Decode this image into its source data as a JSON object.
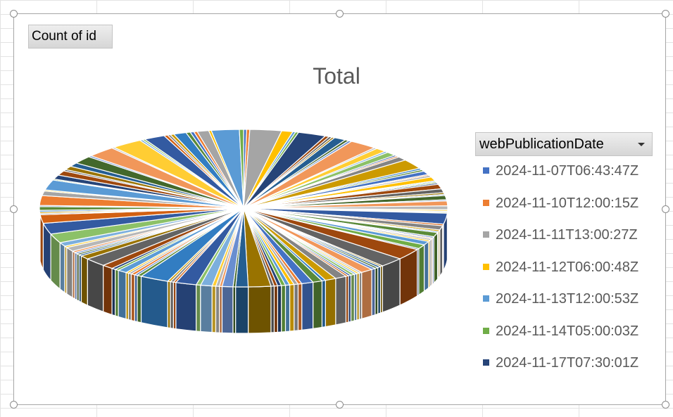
{
  "pivot": {
    "values_field": "Count of id",
    "legend_field": "webPublicationDate"
  },
  "chart_data": {
    "type": "pie",
    "title": "Total",
    "legend_position": "right",
    "slices": [
      {
        "label": "2024-11-07T06:43:47Z",
        "value": 1,
        "color": "#4472C4"
      },
      {
        "label": "2024-11-10T12:00:15Z",
        "value": 1,
        "color": "#ED7D31"
      },
      {
        "label": "2024-11-11T13:00:27Z",
        "value": 1,
        "color": "#A5A5A5"
      },
      {
        "label": "2024-11-12T06:00:48Z",
        "value": 1,
        "color": "#FFC000"
      },
      {
        "label": "2024-11-13T12:00:53Z",
        "value": 1,
        "color": "#5B9BD5"
      },
      {
        "label": "2024-11-14T05:00:03Z",
        "value": 1,
        "color": "#70AD47"
      },
      {
        "label": "2024-11-17T07:30:01Z",
        "value": 1,
        "color": "#264478"
      }
    ],
    "palette_cycle": [
      "#4472C4",
      "#ED7D31",
      "#A5A5A5",
      "#FFC000",
      "#5B9BD5",
      "#70AD47",
      "#264478",
      "#9E480E",
      "#636363",
      "#997300",
      "#255E91",
      "#43682B",
      "#698ED0",
      "#F1975A",
      "#B7B7B7",
      "#FFCD33",
      "#7CAFDD",
      "#8CC168",
      "#335AA1",
      "#D26012",
      "#848484",
      "#CC9A00",
      "#327DC2",
      "#5A8A39"
    ],
    "approx_slice_count": 150
  }
}
